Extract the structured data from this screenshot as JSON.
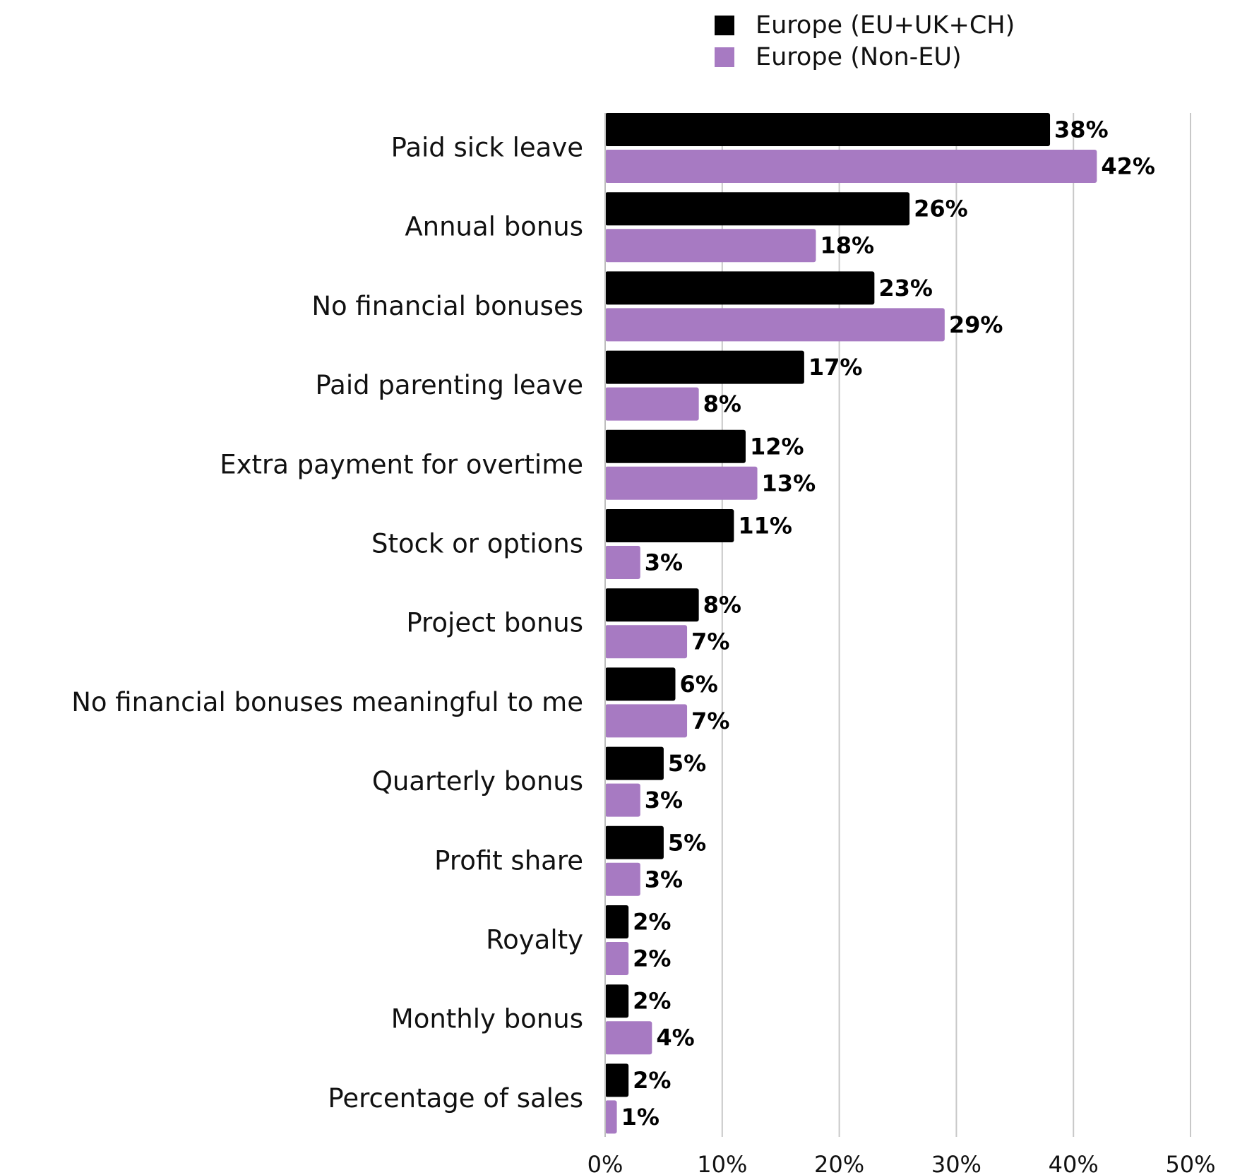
{
  "chart_data": {
    "type": "bar",
    "orientation": "horizontal",
    "categories": [
      "Paid sick leave",
      "Annual bonus",
      "No financial bonuses",
      "Paid parenting leave",
      "Extra payment for overtime",
      "Stock or options",
      "Project bonus",
      "No financial bonuses meaningful to me",
      "Quarterly bonus",
      "Profit share",
      "Royalty",
      "Monthly bonus",
      "Percentage of sales"
    ],
    "series": [
      {
        "name": "Europe (EU+UK+CH)",
        "color": "#000000",
        "values": [
          38,
          26,
          23,
          17,
          12,
          11,
          8,
          6,
          5,
          5,
          2,
          2,
          2
        ],
        "labels": [
          "38%",
          "26%",
          "23%",
          "17%",
          "12%",
          "11%",
          "8%",
          "6%",
          "5%",
          "5%",
          "2%",
          "2%",
          "2%"
        ]
      },
      {
        "name": "Europe (Non-EU)",
        "color": "#a77ac2",
        "values": [
          42,
          18,
          29,
          8,
          13,
          3,
          7,
          7,
          3,
          3,
          2,
          4,
          1
        ],
        "labels": [
          "42%",
          "18%",
          "29%",
          "8%",
          "13%",
          "3%",
          "7%",
          "7%",
          "3%",
          "3%",
          "2%",
          "4%",
          "1%"
        ]
      }
    ],
    "xlim": [
      0,
      50
    ],
    "xticks": [
      0,
      10,
      20,
      30,
      40,
      50
    ],
    "xtick_labels": [
      "0%",
      "10%",
      "20%",
      "30%",
      "40%",
      "50%"
    ],
    "title": "",
    "xlabel": "",
    "ylabel": "",
    "grid": "vertical",
    "legend_position": "top-right"
  }
}
